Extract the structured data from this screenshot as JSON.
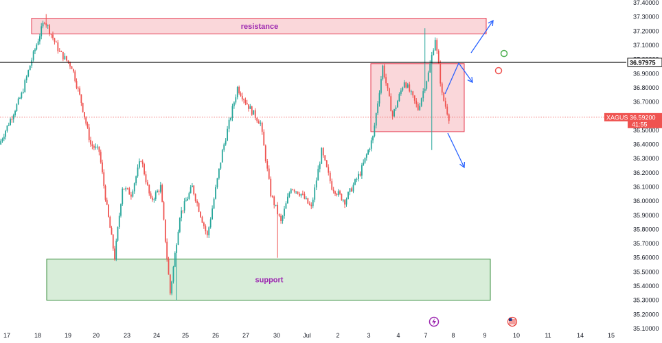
{
  "chart_data": {
    "type": "candlestick",
    "symbol": "XAGUSD",
    "last_price": "36.59200",
    "countdown": "41:55",
    "level_label": "36.97975",
    "level_value": 36.97975,
    "ylim": [
      35.1,
      37.4
    ],
    "y_ticks": [
      "37.40000",
      "37.30000",
      "37.20000",
      "37.10000",
      "37.00000",
      "36.90000",
      "36.80000",
      "36.70000",
      "36.60000",
      "36.50000",
      "36.40000",
      "36.30000",
      "36.20000",
      "36.10000",
      "36.00000",
      "35.90000",
      "35.80000",
      "35.70000",
      "35.60000",
      "35.50000",
      "35.40000",
      "35.30000",
      "35.20000",
      "35.10000"
    ],
    "x_ticks": [
      "17",
      "18",
      "19",
      "20",
      "23",
      "24",
      "25",
      "26",
      "27",
      "30",
      "Jul",
      "2",
      "3",
      "4",
      "7",
      "8",
      "9",
      "10",
      "11",
      "14",
      "15"
    ],
    "zones": [
      {
        "label": "resistance",
        "price_low": 37.18,
        "price_high": 37.29,
        "date_start": "Jun 17 late",
        "date_end": "Jul 9",
        "color": "#f28b96"
      },
      {
        "label": "support",
        "price_low": 35.3,
        "price_high": 35.59,
        "date_start": "Jun 18",
        "date_end": "Jul 10",
        "color": "#4caf50"
      },
      {
        "label": "",
        "price_low": 36.49,
        "price_high": 36.97,
        "date_start": "Jul 3",
        "date_end": "Jul 8",
        "color": "#f28b96"
      }
    ],
    "anchors": [
      {
        "day": "17",
        "price": 36.4
      },
      {
        "day": "17",
        "price": 36.75
      },
      {
        "day": "17",
        "price": 37.0
      },
      {
        "day": "18",
        "price": 37.28
      },
      {
        "day": "18",
        "price": 37.05
      },
      {
        "day": "19",
        "price": 36.95
      },
      {
        "day": "19",
        "price": 36.7
      },
      {
        "day": "19",
        "price": 36.4
      },
      {
        "day": "20",
        "price": 36.35
      },
      {
        "day": "20",
        "price": 35.95
      },
      {
        "day": "20",
        "price": 35.6
      },
      {
        "day": "20",
        "price": 36.1
      },
      {
        "day": "23",
        "price": 36.05
      },
      {
        "day": "23",
        "price": 36.3
      },
      {
        "day": "23",
        "price": 36.0
      },
      {
        "day": "24",
        "price": 36.1
      },
      {
        "day": "24",
        "price": 35.35
      },
      {
        "day": "24",
        "price": 35.9
      },
      {
        "day": "25",
        "price": 36.1
      },
      {
        "day": "25",
        "price": 35.75
      },
      {
        "day": "26",
        "price": 36.35
      },
      {
        "day": "26",
        "price": 36.8
      },
      {
        "day": "27",
        "price": 36.65
      },
      {
        "day": "27",
        "price": 36.55
      },
      {
        "day": "27",
        "price": 36.05
      },
      {
        "day": "30",
        "price": 35.85
      },
      {
        "day": "30",
        "price": 36.1
      },
      {
        "day": "30",
        "price": 36.05
      },
      {
        "day": "Jul",
        "price": 35.95
      },
      {
        "day": "Jul",
        "price": 36.35
      },
      {
        "day": "Jul",
        "price": 36.1
      },
      {
        "day": "2",
        "price": 36.0
      },
      {
        "day": "2",
        "price": 36.2
      },
      {
        "day": "3",
        "price": 36.45
      },
      {
        "day": "3",
        "price": 36.95
      },
      {
        "day": "3",
        "price": 36.6
      },
      {
        "day": "4",
        "price": 36.85
      },
      {
        "day": "4",
        "price": 36.65
      },
      {
        "day": "7",
        "price": 36.9
      },
      {
        "day": "7",
        "price": 37.15
      },
      {
        "day": "7",
        "price": 36.75
      },
      {
        "day": "7",
        "price": 36.59
      }
    ],
    "arrows": [
      {
        "direction": "up",
        "from": "Jul 8",
        "to": "Jul 9",
        "target": 37.25
      },
      {
        "direction": "up",
        "from": "Jul 7",
        "to": "Jul 8",
        "target": 36.95
      },
      {
        "direction": "down",
        "from": "Jul 7",
        "to": "Jul 8",
        "target": 36.2
      }
    ],
    "colors": {
      "up": "#26a69a",
      "down": "#ef5350",
      "level": "#000000",
      "arrow": "#2962ff"
    }
  }
}
